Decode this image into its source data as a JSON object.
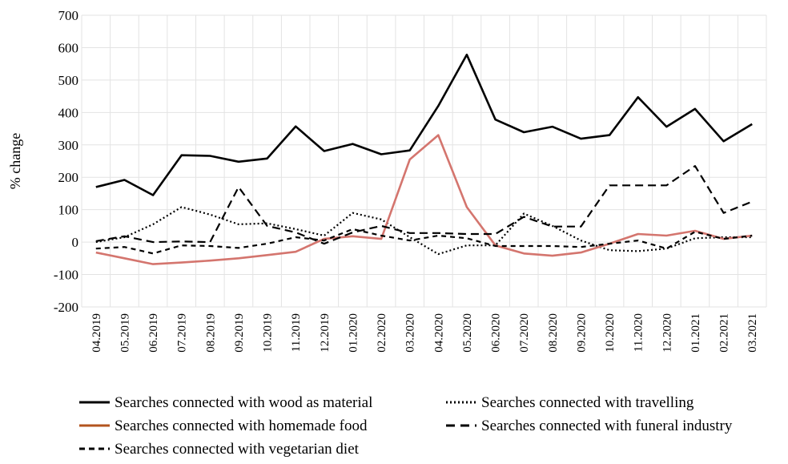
{
  "chart_data": {
    "type": "line",
    "title": "",
    "xlabel": "",
    "ylabel": "% change",
    "ylim": [
      -200,
      700
    ],
    "yticks": [
      -200,
      -100,
      0,
      100,
      200,
      300,
      400,
      500,
      600,
      700
    ],
    "grid": true,
    "legend_position": "bottom",
    "categories": [
      "04.2019",
      "05.2019",
      "06.2019",
      "07.2019",
      "08.2019",
      "09.2019",
      "10.2019",
      "11.2019",
      "12.2019",
      "01.2020",
      "02.2020",
      "03.2020",
      "04.2020",
      "05.2020",
      "06.2020",
      "07.2020",
      "08.2020",
      "09.2020",
      "10.2020",
      "11.2020",
      "12.2020",
      "01.2021",
      "02.2021",
      "03.2021"
    ],
    "series": [
      {
        "name": "Searches connected with wood as material",
        "color": "#000000",
        "style": "solid",
        "values": [
          170,
          192,
          145,
          268,
          266,
          248,
          258,
          357,
          281,
          303,
          271,
          283,
          420,
          578,
          378,
          339,
          356,
          319,
          330,
          447,
          356,
          411,
          311,
          364
        ]
      },
      {
        "name": "Searches connected with travelling",
        "color": "#000000",
        "style": "dotted",
        "values": [
          0,
          15,
          55,
          108,
          85,
          55,
          58,
          40,
          20,
          90,
          70,
          15,
          -37,
          -10,
          -10,
          88,
          50,
          5,
          -25,
          -28,
          -20,
          12,
          15,
          15
        ]
      },
      {
        "name": "Searches connected with homemade food",
        "color": "#d4756e",
        "style": "solid",
        "values": [
          -32,
          -50,
          -68,
          -63,
          -57,
          -50,
          -40,
          -30,
          10,
          18,
          10,
          255,
          330,
          108,
          -10,
          -35,
          -42,
          -32,
          -5,
          25,
          20,
          35,
          10,
          20
        ]
      },
      {
        "name": "Searches connected with funeral industry",
        "color": "#000000",
        "style": "dashed",
        "values": [
          3,
          18,
          0,
          2,
          0,
          170,
          50,
          30,
          -5,
          30,
          50,
          28,
          28,
          25,
          25,
          78,
          48,
          48,
          175,
          175,
          175,
          235,
          90,
          125
        ]
      },
      {
        "name": "Searches connected with vegetarian diet",
        "color": "#000000",
        "style": "shortdash",
        "values": [
          -20,
          -15,
          -35,
          -10,
          -12,
          -18,
          -5,
          15,
          5,
          40,
          20,
          5,
          20,
          12,
          -12,
          -12,
          -12,
          -15,
          -5,
          5,
          -20,
          32,
          10,
          20
        ]
      }
    ],
    "legend_swatch_colors": {
      "homemade_food": "#b3541e"
    }
  }
}
